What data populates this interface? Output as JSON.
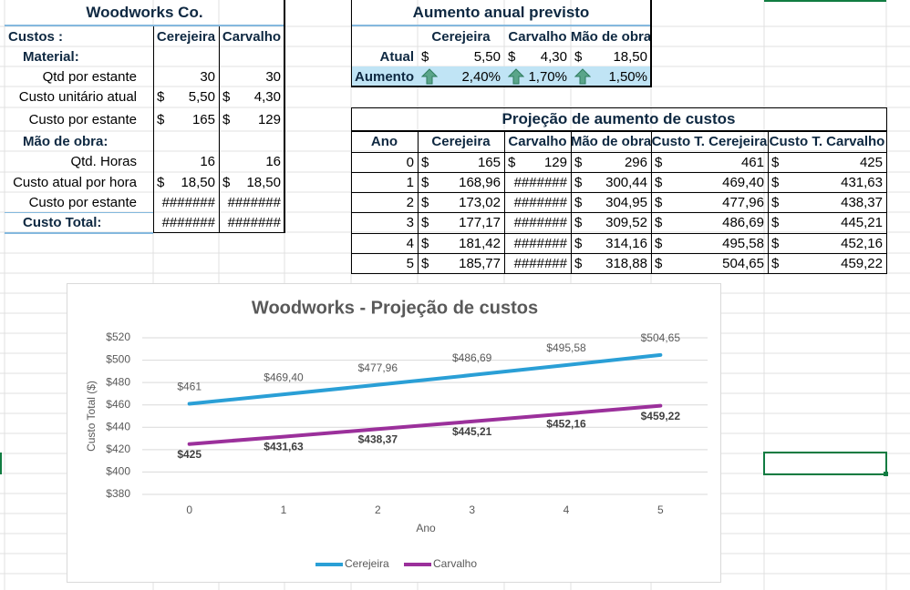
{
  "sheet": {
    "table1": {
      "title": "Woodworks Co.",
      "rows": [
        [
          "Custos :",
          "Cerejeira",
          "Carvalho"
        ],
        [
          "Material:"
        ],
        [
          "Qtd por estante",
          30,
          30
        ],
        [
          "Custo unitário atual",
          [
            "$",
            "5,50"
          ],
          [
            "$",
            "4,30"
          ]
        ],
        [
          "Custo por estante",
          [
            "$",
            "165"
          ],
          [
            "$",
            "129"
          ]
        ],
        [
          "Mão de obra:"
        ],
        [
          "Qtd. Horas",
          16,
          16
        ],
        [
          "Custo atual por hora",
          [
            "$",
            "18,50"
          ],
          [
            "$",
            "18,50"
          ]
        ],
        [
          "Custo por estante",
          "#######",
          "#######"
        ],
        [
          "Custo Total:",
          "#######",
          "#######"
        ]
      ]
    },
    "table2": {
      "title": "Aumento anual previsto",
      "rows": [
        [
          null,
          "Cerejeira",
          "Carvalho",
          "Mão de obra"
        ],
        [
          "Atual",
          [
            "$",
            "5,50"
          ],
          [
            "$",
            "4,30"
          ],
          [
            "$",
            "18,50"
          ]
        ],
        [
          "Aumento",
          "2,40%",
          "1,70%",
          "1,50%"
        ]
      ]
    },
    "table3": {
      "title": "Projeção de aumento de custos",
      "rows": [
        [
          "Ano",
          "Cerejeira",
          "Carvalho",
          "Mão de obra",
          "Custo T. Cerejeira",
          "Custo T. Carvalho"
        ],
        [
          0,
          [
            "$",
            "165"
          ],
          [
            "$",
            "129"
          ],
          [
            "$",
            "296"
          ],
          [
            "$",
            "461"
          ],
          [
            "$",
            "425"
          ]
        ],
        [
          1,
          [
            "$",
            "168,96"
          ],
          "#######",
          [
            "$",
            "300,44"
          ],
          [
            "$",
            "469,40"
          ],
          [
            "$",
            "431,63"
          ]
        ],
        [
          2,
          [
            "$",
            "173,02"
          ],
          "#######",
          [
            "$",
            "304,95"
          ],
          [
            "$",
            "477,96"
          ],
          [
            "$",
            "438,37"
          ]
        ],
        [
          3,
          [
            "$",
            "177,17"
          ],
          "#######",
          [
            "$",
            "309,52"
          ],
          [
            "$",
            "486,69"
          ],
          [
            "$",
            "445,21"
          ]
        ],
        [
          4,
          [
            "$",
            "181,42"
          ],
          "#######",
          [
            "$",
            "314,16"
          ],
          [
            "$",
            "495,58"
          ],
          [
            "$",
            "452,16"
          ]
        ],
        [
          5,
          [
            "$",
            "185,77"
          ],
          "#######",
          [
            "$",
            "318,88"
          ],
          [
            "$",
            "504,65"
          ],
          [
            "$",
            "459,22"
          ]
        ]
      ]
    }
  },
  "chart": {
    "type": "line",
    "title": "Woodworks - Projeção de custos",
    "x_label": "Ano",
    "y_label": "Custo Total ($)",
    "x": [
      0,
      1,
      2,
      3,
      4,
      5
    ],
    "xlim": [
      -0.5,
      5.5
    ],
    "xticks": [
      0,
      1,
      2,
      3,
      4,
      5
    ],
    "ylim": [
      380,
      520
    ],
    "yticks": [
      {
        "value": 380,
        "label": "$380"
      },
      {
        "value": 400,
        "label": "$400"
      },
      {
        "value": 420,
        "label": "$420"
      },
      {
        "value": 440,
        "label": "$440"
      },
      {
        "value": 460,
        "label": "$460"
      },
      {
        "value": 480,
        "label": "$480"
      },
      {
        "value": 500,
        "label": "$500"
      },
      {
        "value": 520,
        "label": "$520"
      }
    ],
    "grid": true,
    "legend": "bottom",
    "series": [
      {
        "name": "Cerejeira",
        "color": "#2a9fd6",
        "values": [
          461,
          469.4,
          477.96,
          486.69,
          495.58,
          504.65
        ],
        "value_labels": [
          "$461",
          "$469,40",
          "$477,96",
          "$486,69",
          "$495,58",
          "$504,65"
        ]
      },
      {
        "name": "Carvalho",
        "color": "#9b309b",
        "values": [
          425,
          431.63,
          438.37,
          445.21,
          452.16,
          459.22
        ],
        "value_labels": [
          "$425",
          "$431,63",
          "$438,37",
          "$445,21",
          "$452,16",
          "$459,22"
        ]
      }
    ]
  }
}
